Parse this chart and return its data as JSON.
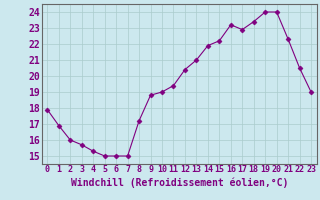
{
  "x": [
    0,
    1,
    2,
    3,
    4,
    5,
    6,
    7,
    8,
    9,
    10,
    11,
    12,
    13,
    14,
    15,
    16,
    17,
    18,
    19,
    20,
    21,
    22,
    23
  ],
  "y": [
    17.9,
    16.9,
    16.0,
    15.7,
    15.3,
    15.0,
    15.0,
    15.0,
    17.2,
    18.8,
    19.0,
    19.4,
    20.4,
    21.0,
    21.9,
    22.2,
    23.2,
    22.9,
    23.4,
    24.0,
    24.0,
    22.3,
    20.5,
    19.0
  ],
  "xlim": [
    -0.5,
    23.5
  ],
  "ylim": [
    14.5,
    24.5
  ],
  "yticks": [
    15,
    16,
    17,
    18,
    19,
    20,
    21,
    22,
    23,
    24
  ],
  "xticks": [
    0,
    1,
    2,
    3,
    4,
    5,
    6,
    7,
    8,
    9,
    10,
    11,
    12,
    13,
    14,
    15,
    16,
    17,
    18,
    19,
    20,
    21,
    22,
    23
  ],
  "xlabel": "Windchill (Refroidissement éolien,°C)",
  "line_color": "#800080",
  "marker": "D",
  "marker_size": 2.5,
  "bg_color": "#cce8ee",
  "grid_color": "#aacccc",
  "tick_color": "#800080",
  "label_color": "#800080",
  "xlabel_fontsize": 7,
  "ytick_fontsize": 7,
  "xtick_fontsize": 6
}
